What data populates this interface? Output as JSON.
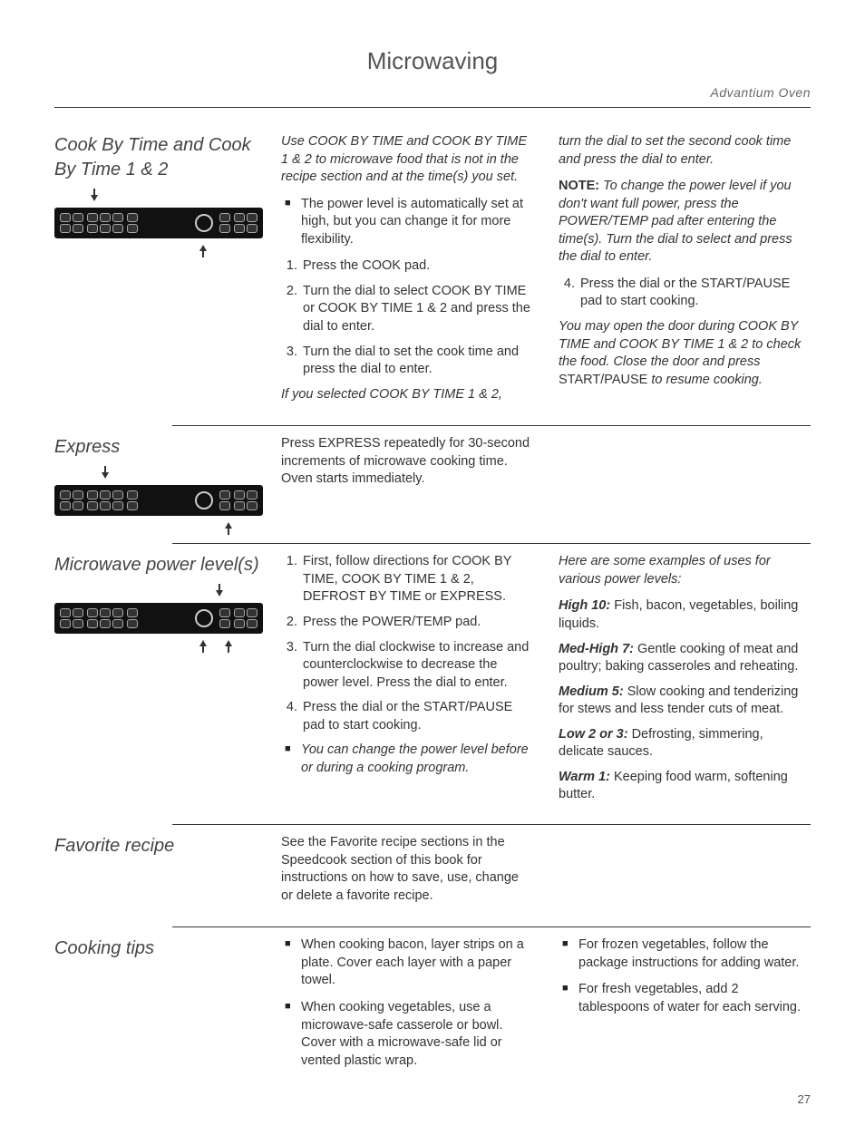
{
  "header": {
    "title": "Microwaving",
    "subtitle": "Advantium Oven"
  },
  "page_number": "27",
  "sections": {
    "cook_by_time": {
      "title": "Cook By Time and Cook By Time 1 & 2",
      "intro": "Use COOK BY TIME and COOK BY TIME 1 & 2 to microwave food that is not in the recipe section and at the time(s) you set.",
      "bullet1": "The power level is automatically set at high, but you can change it for more flexibility.",
      "step1": "Press the COOK pad.",
      "step2": "Turn the dial to select COOK BY TIME or COOK BY TIME 1 & 2  and press the dial to enter.",
      "step3": "Turn the dial to set the cook time and press the dial to enter.",
      "note_italic": "If you selected COOK BY TIME 1 & 2,",
      "col2_p1": "turn the dial to set the second cook time and press the dial to enter.",
      "col2_note_label": "NOTE:",
      "col2_note": " To change the power level if you don't want full power, press the POWER/TEMP pad after entering the time(s). Turn the dial to select and press the dial to enter.",
      "step4": "Press the dial or the START/PAUSE pad to start cooking.",
      "col2_p2a": "You may open the door during COOK BY TIME and COOK BY TIME 1 & 2 to check the food. Close the door and press ",
      "col2_p2b": "START/PAUSE",
      "col2_p2c": " to resume cooking."
    },
    "express": {
      "title": "Express",
      "body": "Press EXPRESS repeatedly for 30-second increments of microwave cooking time. Oven starts immediately."
    },
    "power_levels": {
      "title": "Microwave power level(s)",
      "step1": "First, follow directions for COOK BY TIME, COOK BY TIME 1 & 2, DEFROST BY TIME or EXPRESS.",
      "step2": "Press the POWER/TEMP pad.",
      "step3": "Turn the dial clockwise to increase and counterclockwise to decrease the power level. Press the dial to enter.",
      "step4": "Press the dial or the START/PAUSE pad to start cooking.",
      "bullet1": "You can change the power level before or during a cooking program.",
      "col2_intro": "Here are some examples of uses for various power levels:",
      "levels": [
        {
          "label": "High 10:",
          "text": "  Fish, bacon, vegetables, boiling liquids."
        },
        {
          "label": "Med-High 7:",
          "text": "  Gentle cooking of meat and poultry; baking casseroles and reheating."
        },
        {
          "label": "Medium 5:",
          "text": "  Slow cooking and tenderizing for stews and less tender cuts of meat."
        },
        {
          "label": "Low 2 or 3:",
          "text": "  Defrosting, simmering, delicate sauces."
        },
        {
          "label": "Warm 1:",
          "text": "  Keeping food warm, softening butter."
        }
      ]
    },
    "favorite": {
      "title": "Favorite recipe",
      "body": "See the Favorite recipe sections in the Speedcook section of this book for instructions on how to save, use, change or delete a favorite recipe."
    },
    "tips": {
      "title": "Cooking tips",
      "col1": [
        "When cooking bacon, layer strips on a plate. Cover each layer with a paper towel.",
        "When cooking vegetables, use a microwave-safe casserole or bowl. Cover with a microwave-safe lid or vented plastic wrap."
      ],
      "col2": [
        "For frozen vegetables, follow the package instructions for adding water.",
        "For fresh vegetables, add 2 tablespoons of water for each serving."
      ]
    }
  }
}
